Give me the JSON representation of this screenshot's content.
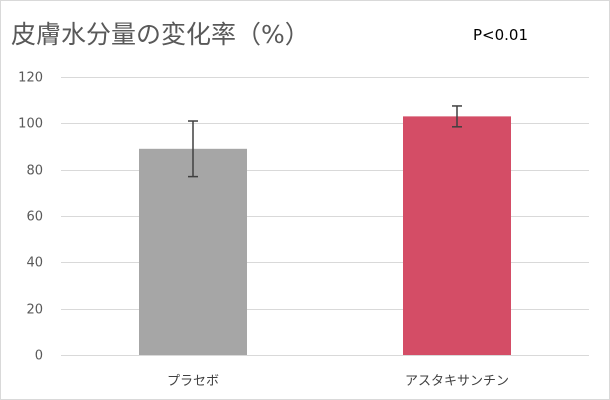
{
  "chart_data": {
    "type": "bar",
    "title": "皮膚水分量の変化率（%）",
    "annotation": "P<0.01",
    "categories": [
      "プラセボ",
      "アスタキサンチン"
    ],
    "values": [
      89,
      103
    ],
    "error": [
      12,
      4.5
    ],
    "colors": [
      "#a6a6a6",
      "#d44d66"
    ],
    "ylim": [
      0,
      120
    ],
    "yticks": [
      0,
      20,
      40,
      60,
      80,
      100,
      120
    ],
    "grid": true,
    "xlabel": "",
    "ylabel": ""
  }
}
